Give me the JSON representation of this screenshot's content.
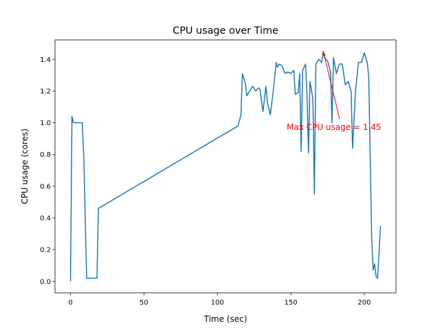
{
  "chart_data": {
    "type": "line",
    "title": "CPU usage over Time",
    "xlabel": "Time (sec)",
    "ylabel": "CPU usage (cores)",
    "color": "#1f77b4",
    "annotation": {
      "text": "Max CPU usage = 1.45",
      "color": "#ff0000"
    },
    "x": [
      0,
      1,
      2,
      4,
      6,
      8,
      9,
      11,
      14,
      18,
      19,
      114,
      116,
      117,
      119,
      120,
      122,
      124,
      126,
      128,
      129,
      131,
      133,
      134,
      136,
      138,
      140,
      141,
      142,
      144,
      146,
      148,
      150,
      152,
      153,
      155,
      156,
      157,
      158,
      160,
      161,
      162,
      163,
      165,
      166,
      167,
      169,
      171,
      172,
      173,
      175,
      177,
      178,
      179,
      181,
      183,
      185,
      187,
      189,
      191,
      192,
      194,
      196,
      198,
      200,
      202,
      203,
      205,
      206,
      207,
      208,
      209,
      210,
      211
    ],
    "values": [
      0.0,
      1.04,
      1.0,
      1.0,
      1.0,
      1.0,
      0.8,
      0.02,
      0.02,
      0.02,
      0.46,
      0.98,
      1.05,
      1.31,
      1.25,
      1.17,
      1.2,
      1.23,
      1.2,
      1.22,
      1.21,
      1.07,
      1.23,
      1.13,
      1.05,
      1.2,
      1.38,
      1.35,
      1.37,
      1.36,
      1.31,
      1.32,
      1.31,
      1.33,
      1.18,
      1.19,
      1.31,
      0.82,
      1.33,
      1.37,
      1.17,
      0.81,
      1.26,
      1.15,
      0.55,
      1.37,
      1.4,
      1.38,
      1.45,
      1.41,
      1.39,
      1.32,
      1.0,
      1.41,
      1.31,
      1.37,
      1.37,
      1.24,
      1.26,
      1.2,
      0.84,
      1.2,
      1.38,
      1.38,
      1.44,
      1.38,
      1.29,
      0.28,
      0.07,
      0.11,
      0.03,
      0.02,
      0.18,
      0.35
    ],
    "xlim": [
      -10.55,
      221.55
    ],
    "ylim": [
      -0.0725,
      1.5225
    ],
    "xticks": [
      0,
      50,
      100,
      150,
      200
    ],
    "yticks": [
      {
        "value": 0,
        "label": "0.0"
      },
      0.2,
      0.4,
      0.6,
      0.8,
      {
        "value": 1,
        "label": "1.0"
      },
      1.2,
      1.4
    ]
  }
}
